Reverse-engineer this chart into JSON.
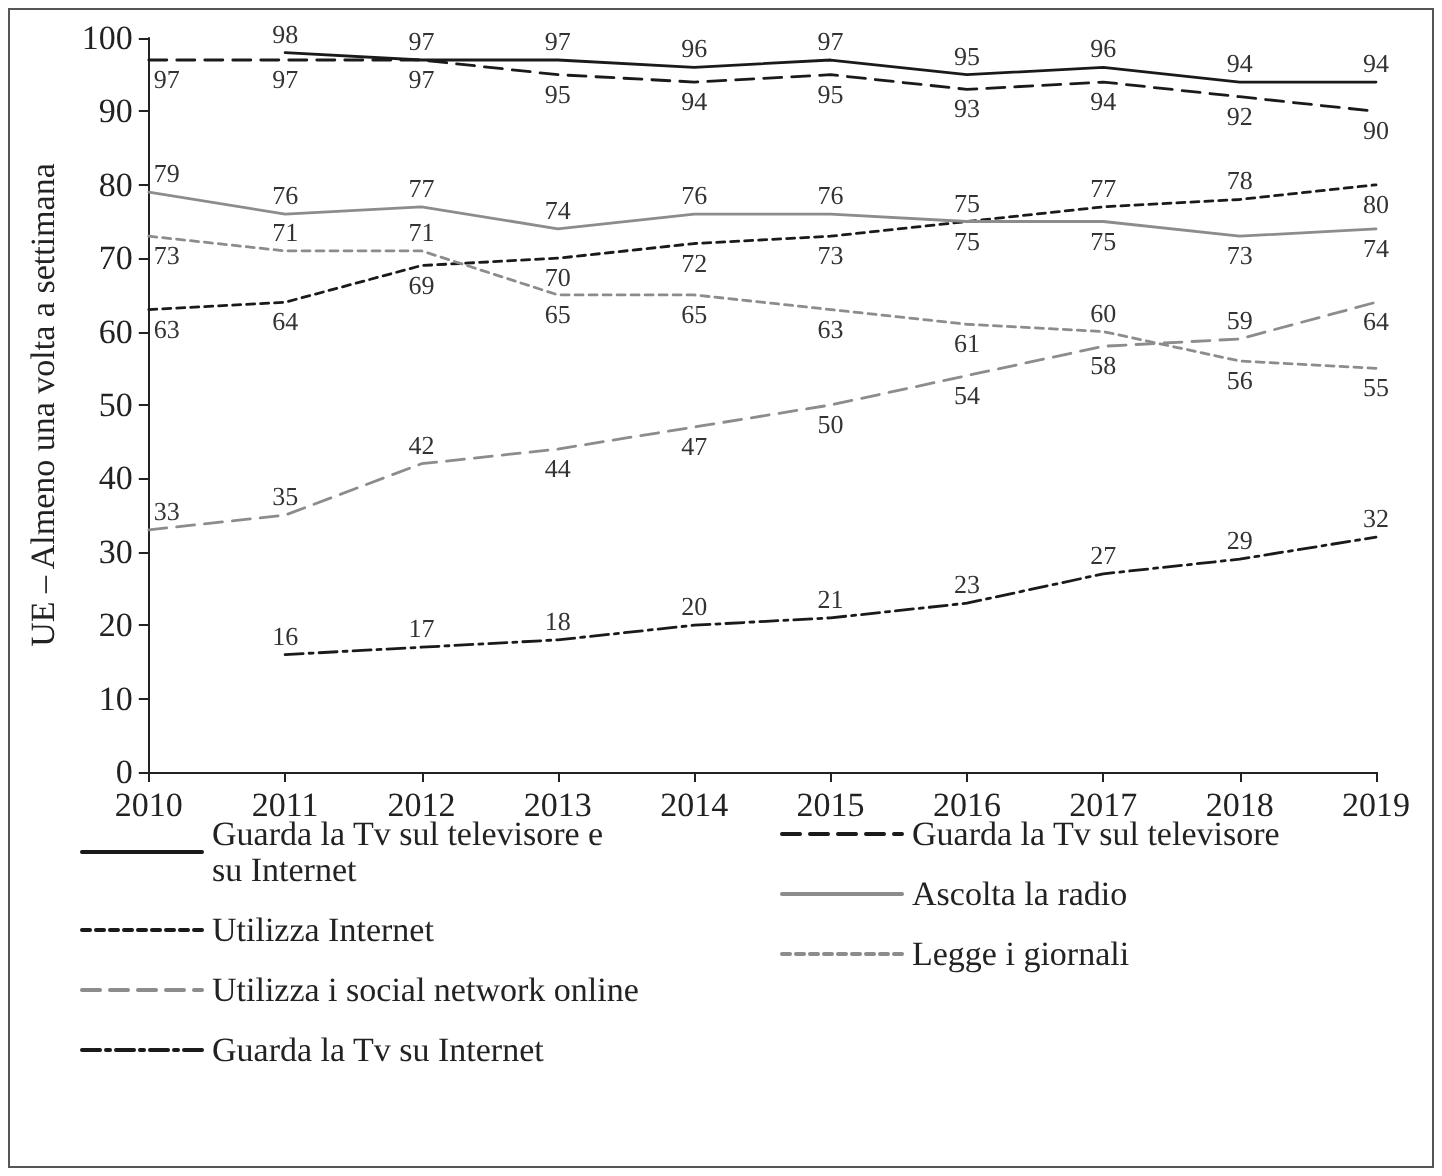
{
  "chart_data": {
    "type": "line",
    "ylabel": "UE – Almeno una volta a settimana",
    "categories": [
      "2010",
      "2011",
      "2012",
      "2013",
      "2014",
      "2015",
      "2016",
      "2017",
      "2018",
      "2019"
    ],
    "ylim": [
      0,
      100
    ],
    "yticks": [
      0,
      10,
      20,
      30,
      40,
      50,
      60,
      70,
      80,
      90,
      100
    ],
    "grid": false,
    "legend": "bottom",
    "marker": "none",
    "data_labels": true,
    "series": [
      {
        "name": "Guarda la Tv sul televisore e su Internet",
        "color": "#1a1a1a",
        "line_style": "solid",
        "values": [
          null,
          98,
          97,
          97,
          96,
          97,
          95,
          96,
          94,
          94
        ]
      },
      {
        "name": "Guarda la Tv sul televisore",
        "color": "#1a1a1a",
        "line_style": "dashed",
        "values": [
          97,
          97,
          97,
          95,
          94,
          95,
          93,
          94,
          92,
          90
        ]
      },
      {
        "name": "Utilizza Internet",
        "color": "#1a1a1a",
        "line_style": "dotted",
        "values": [
          63,
          64,
          69,
          70,
          72,
          73,
          75,
          77,
          78,
          80
        ]
      },
      {
        "name": "Ascolta la radio",
        "color": "#8c8c8c",
        "line_style": "solid",
        "values": [
          79,
          76,
          77,
          74,
          76,
          76,
          75,
          75,
          73,
          74
        ]
      },
      {
        "name": "Utilizza i social network online",
        "color": "#8c8c8c",
        "line_style": "dashed",
        "values": [
          33,
          35,
          42,
          44,
          47,
          50,
          54,
          58,
          59,
          64
        ]
      },
      {
        "name": "Legge i giornali",
        "color": "#8c8c8c",
        "line_style": "dotted",
        "values": [
          73,
          71,
          71,
          65,
          65,
          63,
          61,
          60,
          56,
          55
        ]
      },
      {
        "name": "Guarda la Tv su Internet",
        "color": "#1a1a1a",
        "line_style": "dashdot",
        "values": [
          null,
          16,
          17,
          18,
          20,
          21,
          23,
          27,
          29,
          32
        ]
      }
    ]
  }
}
